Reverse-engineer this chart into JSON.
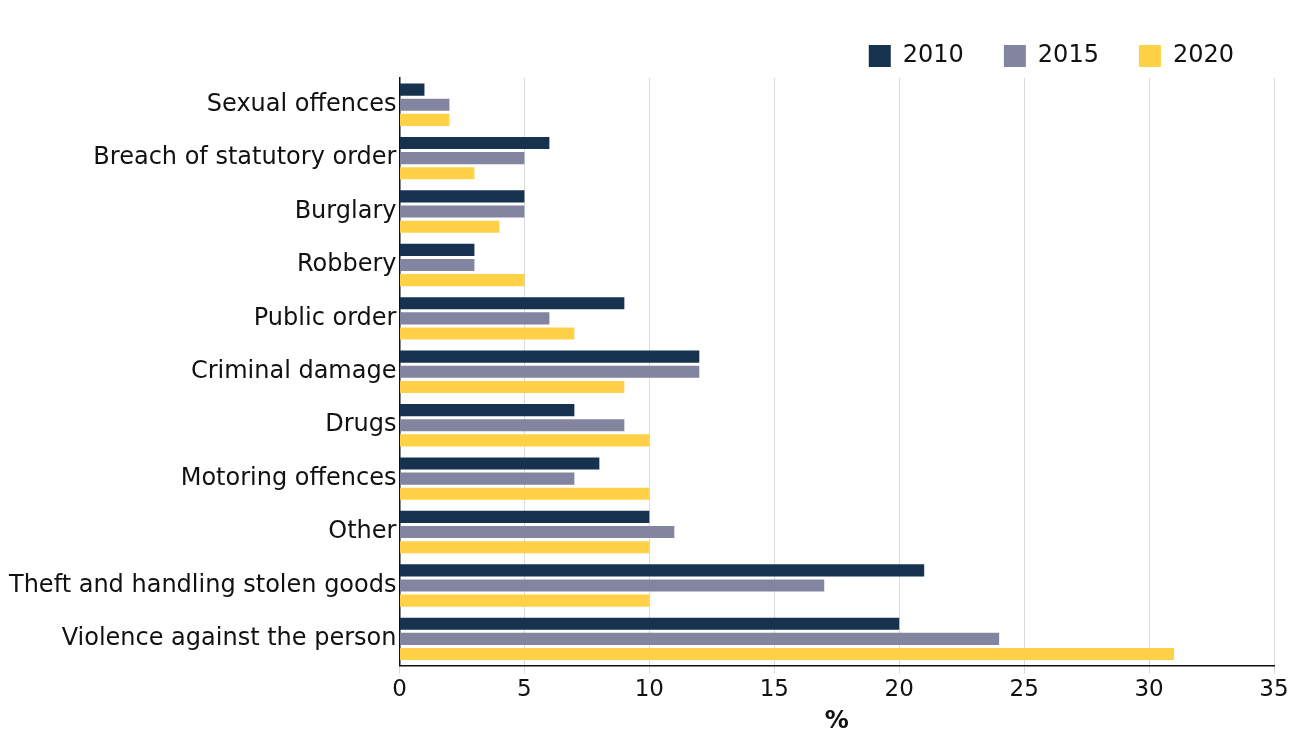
{
  "chart_data": {
    "type": "bar",
    "orientation": "horizontal",
    "xlabel": "%",
    "categories": [
      "Sexual offences",
      "Breach of statutory order",
      "Burglary",
      "Robbery",
      "Public order",
      "Criminal damage",
      "Drugs",
      "Motoring offences",
      "Other",
      "Theft and handling stolen goods",
      "Violence against the person"
    ],
    "series": [
      {
        "name": "2010",
        "color": "#17324f",
        "values": [
          1,
          6,
          5,
          3,
          9,
          12,
          7,
          8,
          10,
          21,
          20
        ]
      },
      {
        "name": "2015",
        "color": "#8385a0",
        "values": [
          2,
          5,
          5,
          3,
          6,
          12,
          9,
          7,
          11,
          17,
          24
        ]
      },
      {
        "name": "2020",
        "color": "#ffd147",
        "values": [
          2,
          3,
          4,
          5,
          7,
          9,
          10,
          10,
          10,
          10,
          31
        ]
      }
    ],
    "xlim": [
      0,
      35
    ],
    "xticks": [
      0,
      5,
      10,
      15,
      20,
      25,
      30,
      35
    ],
    "grid": "x",
    "legend": "top right"
  }
}
